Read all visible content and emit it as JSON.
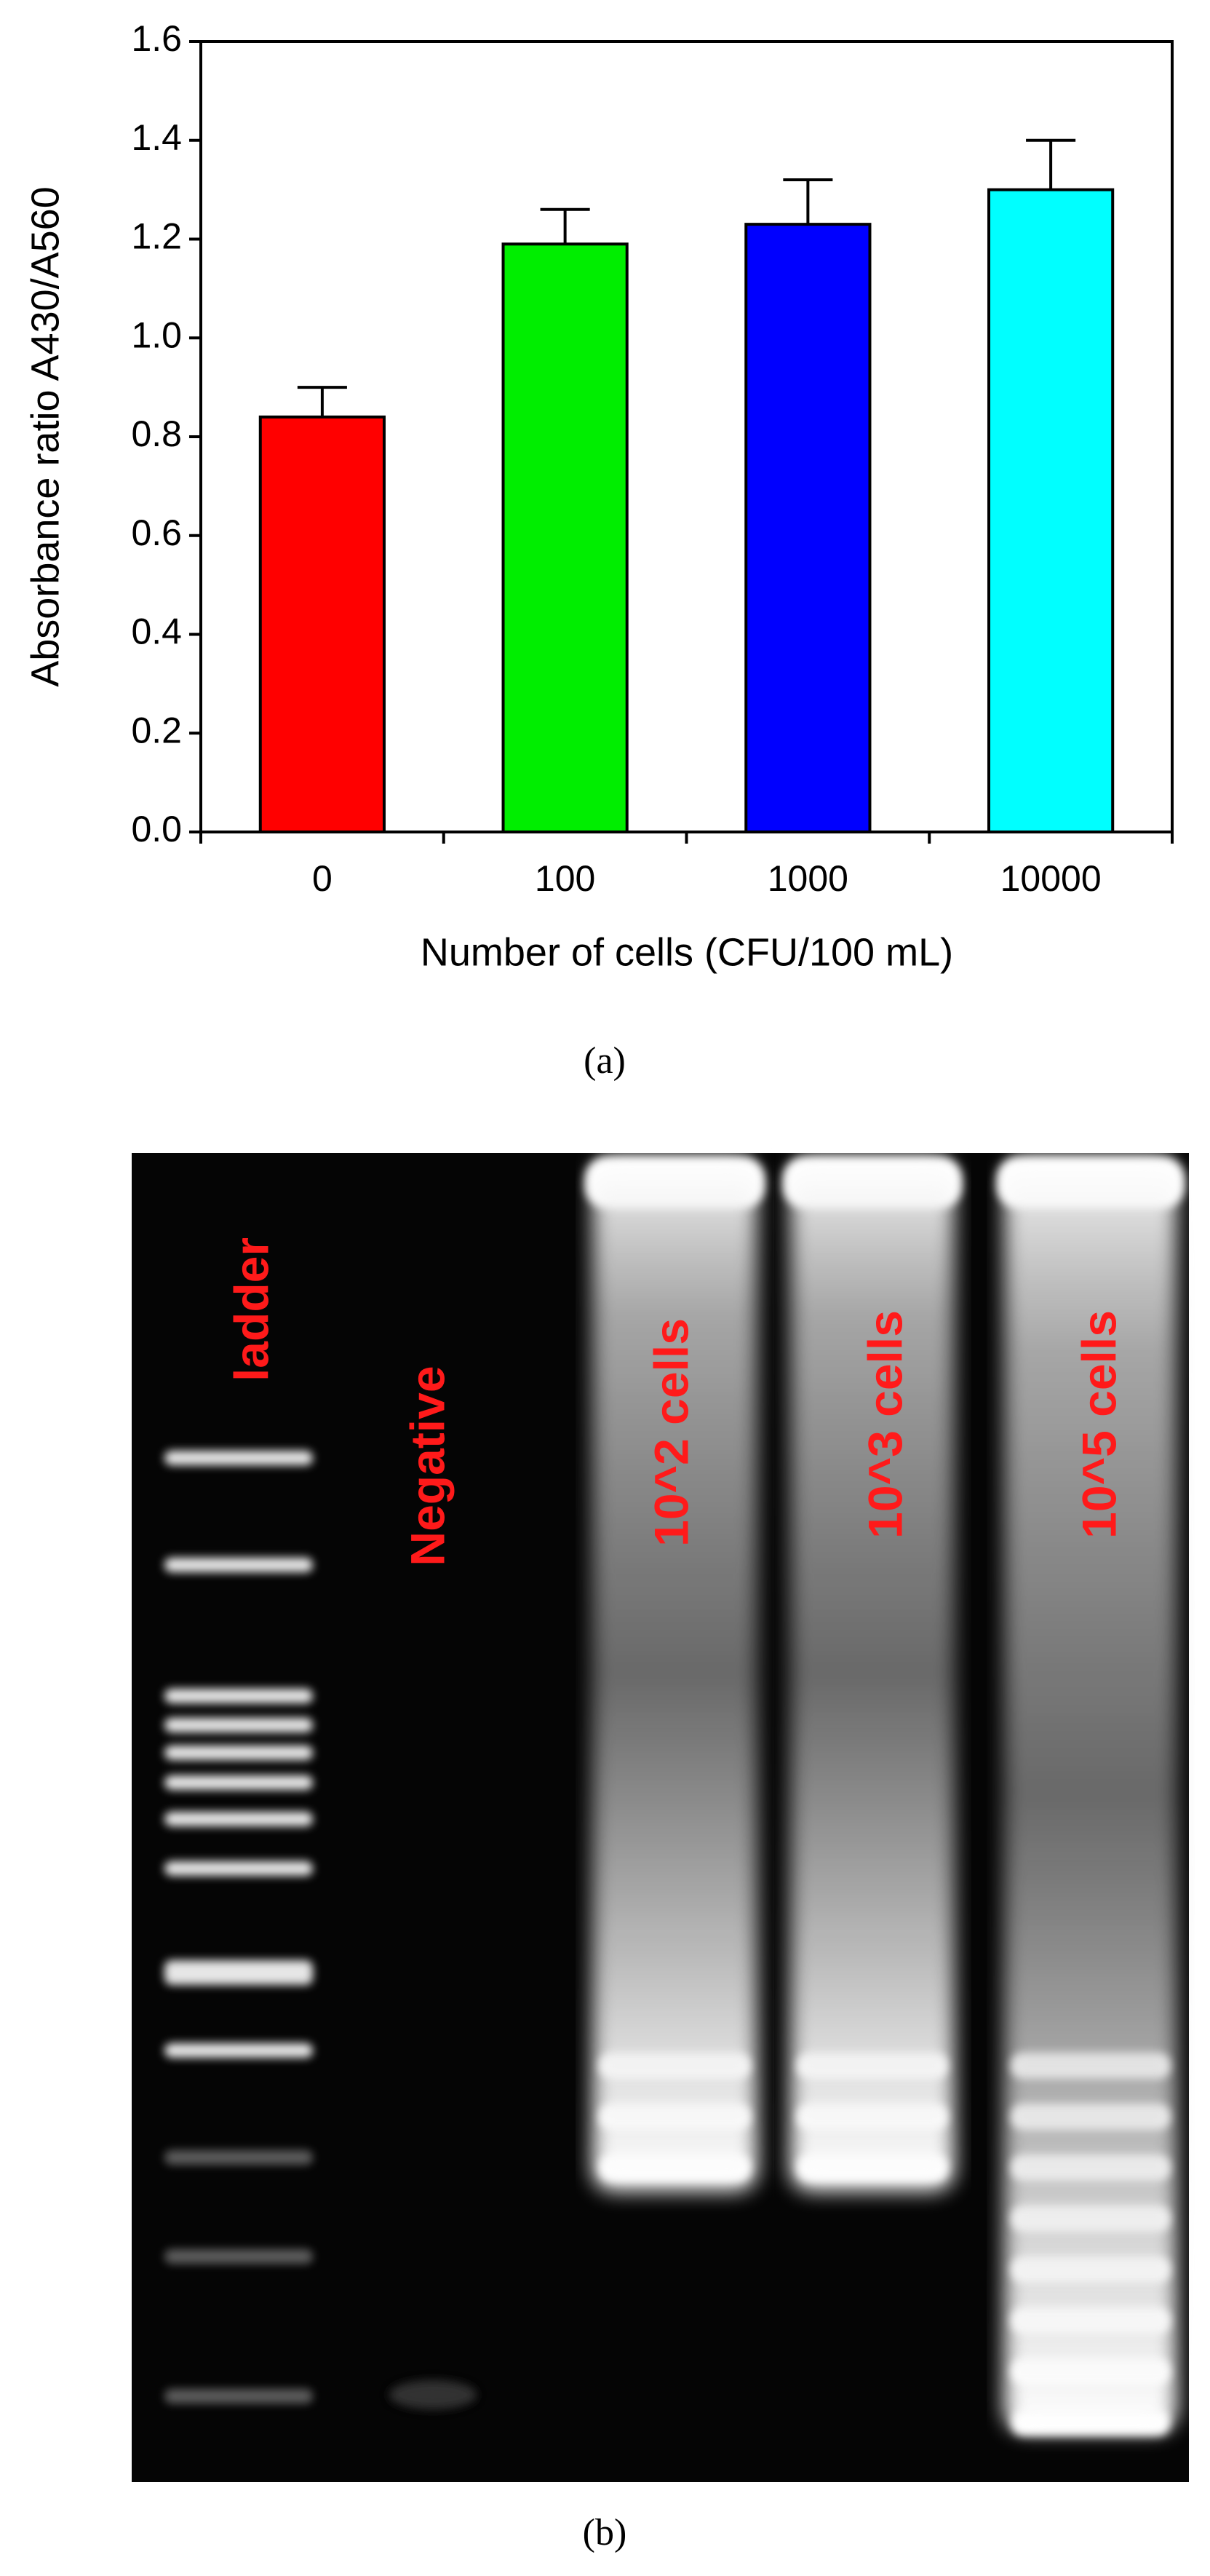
{
  "chart_data": {
    "type": "bar",
    "y_label": "Absorbance ratio A430/A560",
    "x_label": "Number of cells (CFU/100 mL)",
    "categories": [
      "0",
      "100",
      "1000",
      "10000"
    ],
    "values": [
      0.84,
      1.19,
      1.23,
      1.3
    ],
    "errors": [
      0.06,
      0.07,
      0.09,
      0.1
    ],
    "colors": [
      "#ff0000",
      "#00ee00",
      "#0000ff",
      "#00ffff"
    ],
    "ylim": [
      0,
      1.6
    ],
    "yticks": [
      {
        "value": 0,
        "label": "0.0"
      },
      0.2,
      0.4,
      0.6,
      0.8,
      {
        "value": 1.0,
        "label": "1.0"
      },
      1.2,
      1.4,
      1.6
    ],
    "caption": "(a)"
  },
  "gel": {
    "lane_labels": [
      "ladder",
      "Negative",
      "10^2 cells",
      "10^3 cells",
      "10^5 cells"
    ],
    "caption": "(b)"
  }
}
